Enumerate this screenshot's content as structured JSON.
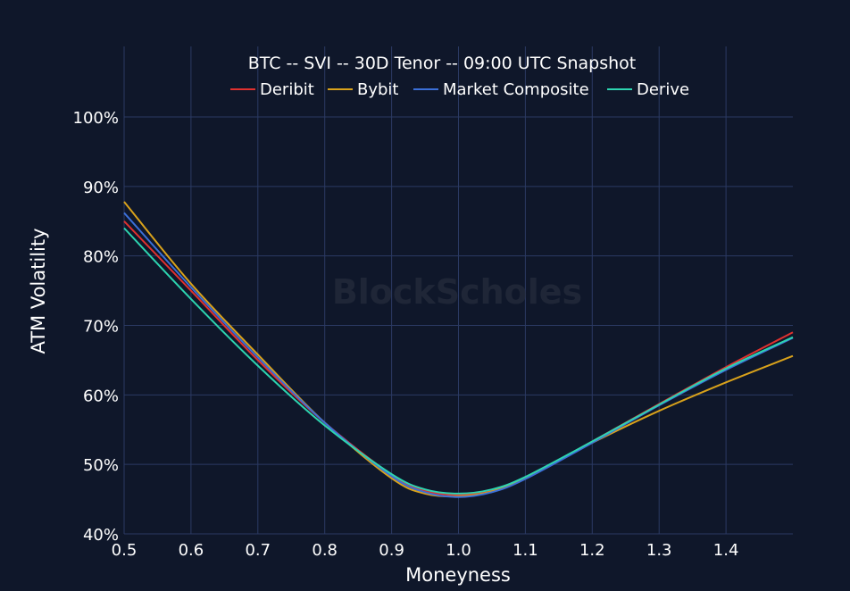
{
  "chart_data": {
    "type": "line",
    "title": "BTC -- SVI -- 30D Tenor -- 09:00 UTC Snapshot",
    "xlabel": "Moneyness",
    "ylabel": "ATM Volatility",
    "xlim": [
      0.5,
      1.5
    ],
    "ylim": [
      40,
      100
    ],
    "x_ticks": [
      "0.5",
      "0.6",
      "0.7",
      "0.8",
      "0.9",
      "1.0",
      "1.1",
      "1.2",
      "1.3",
      "1.4"
    ],
    "y_ticks": [
      "40%",
      "50%",
      "60%",
      "70%",
      "80%",
      "90%",
      "100%"
    ],
    "grid": true,
    "legend_position": "top",
    "watermark": "BlockScholes",
    "x": [
      0.5,
      0.6,
      0.7,
      0.8,
      0.9,
      0.95,
      1.0,
      1.05,
      1.1,
      1.2,
      1.3,
      1.4,
      1.5
    ],
    "series": [
      {
        "name": "Deribit",
        "color": "#e0312f",
        "values": [
          85.0,
          75.0,
          65.0,
          56.0,
          48.5,
          46.2,
          45.6,
          46.3,
          48.1,
          53.3,
          58.7,
          64.0,
          69.0
        ]
      },
      {
        "name": "Bybit",
        "color": "#d9a21b",
        "values": [
          87.8,
          76.0,
          65.8,
          56.0,
          48.0,
          45.8,
          45.4,
          46.1,
          48.0,
          53.1,
          57.7,
          61.8,
          65.6
        ]
      },
      {
        "name": "Market Composite",
        "color": "#3b6fd8",
        "values": [
          86.2,
          75.5,
          65.4,
          56.0,
          48.3,
          46.0,
          45.3,
          46.0,
          47.9,
          53.1,
          58.5,
          63.6,
          68.2
        ]
      },
      {
        "name": "Derive",
        "color": "#2dd4b0",
        "values": [
          84.0,
          73.8,
          64.2,
          55.6,
          48.6,
          46.4,
          45.8,
          46.4,
          48.2,
          53.3,
          58.6,
          63.8,
          68.3
        ]
      }
    ]
  }
}
